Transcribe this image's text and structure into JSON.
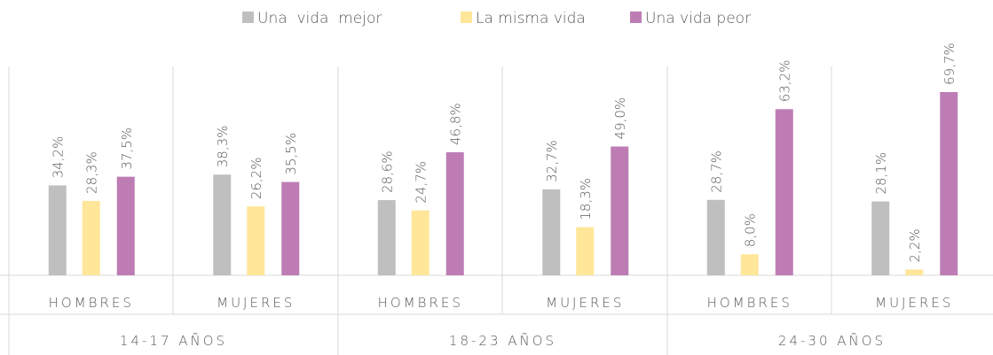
{
  "chart_data": {
    "type": "bar",
    "categories": [
      "HOMBRES",
      "MUJERES",
      "HOMBRES",
      "MUJERES",
      "HOMBRES",
      "MUJERES"
    ],
    "groups": [
      "14-17 AÑOS",
      "18-23 AÑOS",
      "24-30 AÑOS"
    ],
    "series": [
      {
        "name": "Una  vida  mejor",
        "color": "#bfbfbf",
        "values": [
          34.2,
          38.3,
          28.6,
          32.7,
          28.7,
          28.1
        ],
        "value_labels": [
          "34,2%",
          "38,3%",
          "28,6%",
          "32,7%",
          "28,7%",
          "28,1%"
        ]
      },
      {
        "name": "La misma vida",
        "color": "#ffe699",
        "values": [
          28.3,
          26.2,
          24.7,
          18.3,
          8.0,
          2.2
        ],
        "value_labels": [
          "28,3%",
          "26,2%",
          "24,7%",
          "18,3%",
          "8,0%",
          "2,2%"
        ]
      },
      {
        "name": "Una vida peor",
        "color": "#bd7db4",
        "values": [
          37.5,
          35.5,
          46.8,
          49.0,
          63.2,
          69.7
        ],
        "value_labels": [
          "37,5%",
          "35,5%",
          "46,8%",
          "49,0%",
          "63,2%",
          "69,7%"
        ]
      }
    ],
    "ylim": [
      0,
      100
    ],
    "legend": "top"
  }
}
